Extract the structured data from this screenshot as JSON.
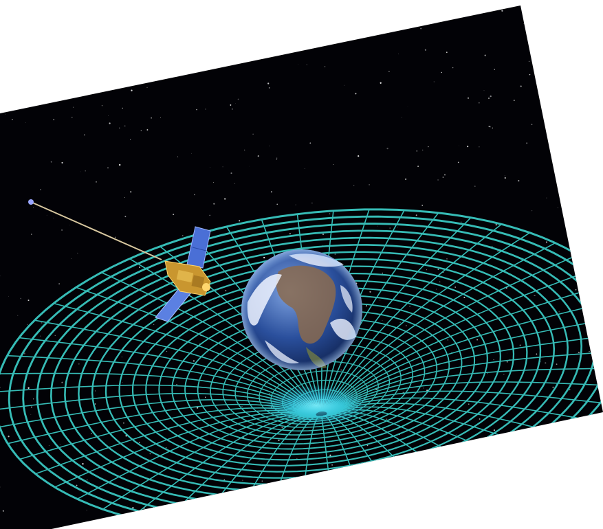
{
  "scene": {
    "background": "#ffffff",
    "space_color": "#020206",
    "grid_color": "#39c6c0",
    "grid_glow_color": "#35d2ff",
    "earth_ocean_color": "#2a4f9c",
    "earth_cloud_color": "#eef3ff",
    "earth_land_color": "#8a6a4e",
    "satellite_body_color": "#c9962f",
    "solar_panel_color": "#4a6fd6",
    "elements": [
      "starfield",
      "spacetime-grid",
      "gravity-well",
      "earth",
      "satellite"
    ]
  }
}
